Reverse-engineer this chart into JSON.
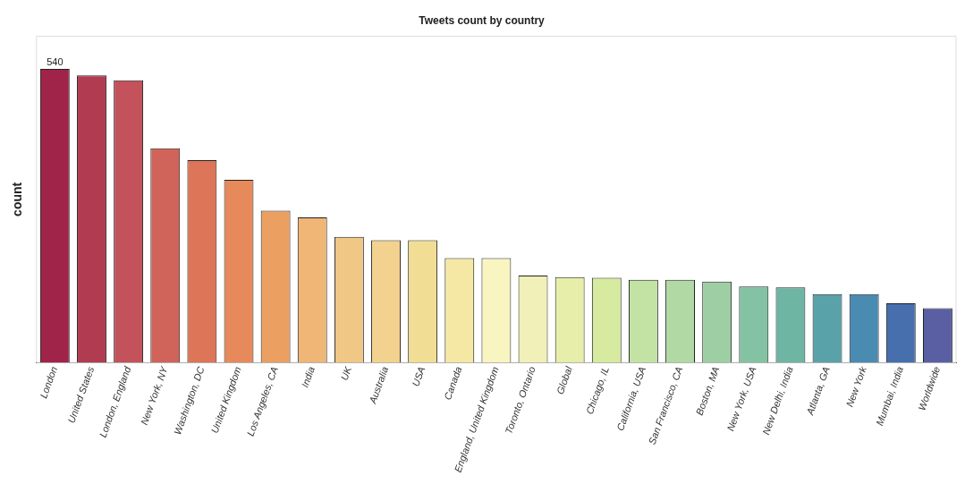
{
  "chart_data": {
    "type": "bar",
    "title": "Tweets count by country",
    "ylabel": "count",
    "tick_labels": "x",
    "categories": [
      "London",
      "United States",
      "London, England",
      "New York, NY",
      "Washington, DC",
      "United Kingdom",
      "Los Angeles, CA",
      "India",
      "UK",
      "Australia",
      "USA",
      "Canada",
      "England, United Kingdom",
      "Toronto, Ontario",
      "Global",
      "Chicago, IL",
      "California, USA",
      "San Francisco, CA",
      "Boston, MA",
      "New York, USA",
      "New Delhi, India",
      "Atlanta, GA",
      "New York",
      "Mumbai, India",
      "Worldwide"
    ],
    "values": [
      540,
      528,
      519,
      394,
      372,
      336,
      279,
      267,
      231,
      225,
      225,
      192,
      192,
      160,
      157,
      156,
      152,
      152,
      149,
      140,
      138,
      126,
      126,
      109,
      100
    ],
    "value_labels": [
      "540",
      null,
      null,
      null,
      null,
      null,
      null,
      null,
      null,
      null,
      null,
      null,
      null,
      null,
      null,
      null,
      null,
      null,
      null,
      null,
      null,
      null,
      null,
      null,
      null
    ],
    "colors": [
      "#a0234a",
      "#b13b50",
      "#c4525a",
      "#d0645a",
      "#dd7559",
      "#e68a5c",
      "#eba062",
      "#efb676",
      "#f0c784",
      "#f2d28e",
      "#f2dd95",
      "#f4e8a4",
      "#f8f5c0",
      "#f0f0b8",
      "#e6eeaa",
      "#d6eba0",
      "#c2e3a4",
      "#b0d9a4",
      "#9ecfa4",
      "#83c3a4",
      "#6eb5a4",
      "#5aa2a9",
      "#4a8bb2",
      "#476fae",
      "#5a5fa3"
    ],
    "legend": false,
    "grid": false
  }
}
